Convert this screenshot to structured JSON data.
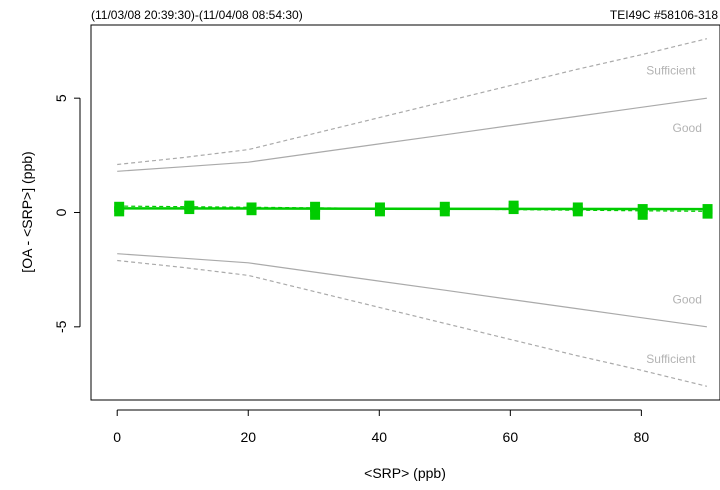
{
  "chart_data": {
    "type": "line",
    "title_left": "(11/03/08 20:39:30)-(11/04/08 08:54:30)",
    "title_right": "TEI49C #58106-318",
    "xlabel": "<SRP> (ppb)",
    "ylabel": "[OA - <SRP>] (ppb)",
    "xlim": [
      -4,
      92
    ],
    "ylim": [
      -8.2,
      8.2
    ],
    "x_ticks": [
      0,
      20,
      40,
      60,
      80
    ],
    "x_tick_labels": [
      "0",
      "20",
      "40",
      "60",
      "80"
    ],
    "y_ticks": [
      -5,
      0,
      5
    ],
    "y_tick_labels": [
      "-5",
      "0",
      "5"
    ],
    "grid": false,
    "colors": {
      "measurement": "#00cc00",
      "good_band": "#aaaaaa",
      "sufficient_band": "#aaaaaa",
      "band_label": "#b3b3b3",
      "axis": "#000000"
    },
    "bands": [
      {
        "label": "Sufficient",
        "style": "dashed",
        "x": [
          0,
          10,
          20,
          30,
          40,
          50,
          60,
          70,
          80,
          90
        ],
        "upper": [
          2.1,
          2.4,
          2.75,
          3.45,
          4.15,
          4.85,
          5.55,
          6.25,
          6.9,
          7.6
        ],
        "lower": [
          -2.1,
          -2.4,
          -2.75,
          -3.45,
          -4.15,
          -4.85,
          -5.55,
          -6.25,
          -6.9,
          -7.6
        ]
      },
      {
        "label": "Good",
        "style": "solid",
        "x": [
          0,
          10,
          20,
          30,
          40,
          50,
          60,
          70,
          80,
          90
        ],
        "upper": [
          1.8,
          2.0,
          2.2,
          2.6,
          3.0,
          3.4,
          3.8,
          4.2,
          4.6,
          5.0
        ],
        "lower": [
          -1.8,
          -2.0,
          -2.2,
          -2.6,
          -3.0,
          -3.4,
          -3.8,
          -4.2,
          -4.6,
          -5.0
        ]
      }
    ],
    "band_labels": [
      {
        "text": "Sufficient",
        "x": 84.5,
        "y": 6.2
      },
      {
        "text": "Good",
        "x": 87,
        "y": 3.7
      },
      {
        "text": "Good",
        "x": 87,
        "y": -3.8
      },
      {
        "text": "Sufficient",
        "x": 84.5,
        "y": -6.4
      }
    ],
    "series": [
      {
        "style": "points",
        "x": [
          0.3,
          11.0,
          20.5,
          30.2,
          40.1,
          50.0,
          60.5,
          70.3,
          80.2,
          90.1
        ],
        "y_high": [
          0.25,
          0.3,
          0.22,
          0.25,
          0.22,
          0.25,
          0.3,
          0.22,
          0.15,
          0.15
        ],
        "y_low": [
          0.05,
          0.15,
          0.1,
          -0.1,
          0.05,
          0.05,
          0.15,
          0.05,
          -0.1,
          -0.05
        ]
      },
      {
        "style": "fit",
        "x": [
          0,
          90
        ],
        "y": [
          0.18,
          0.15
        ]
      },
      {
        "style": "fit-dashed",
        "x": [
          0,
          90
        ],
        "y": [
          0.28,
          0.05
        ]
      }
    ]
  }
}
